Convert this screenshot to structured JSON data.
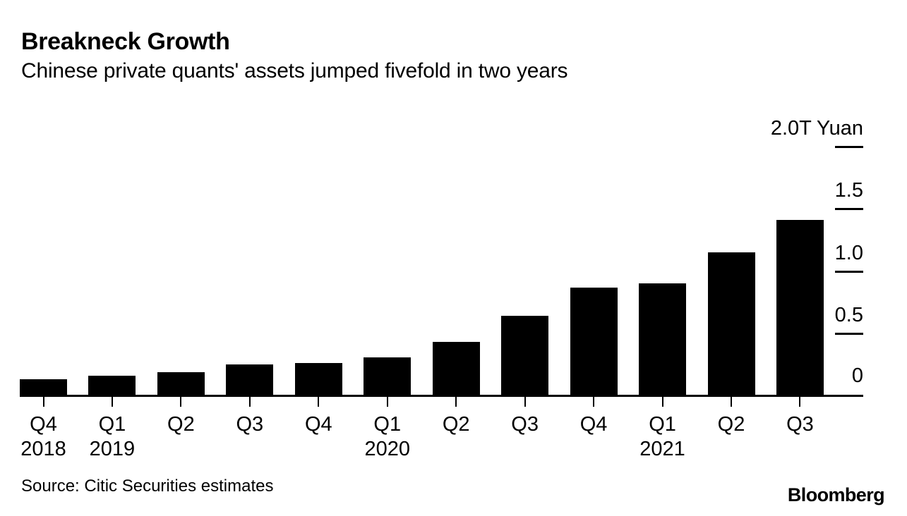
{
  "header": {
    "title": "Breakneck Growth",
    "subtitle": "Chinese private quants' assets jumped fivefold in two years"
  },
  "chart_data": {
    "type": "bar",
    "title": "Breakneck Growth",
    "subtitle": "Chinese private quants' assets jumped fivefold in two years",
    "categories": [
      "Q4 2018",
      "Q1 2019",
      "Q2 2019",
      "Q3 2019",
      "Q4 2019",
      "Q1 2020",
      "Q2 2020",
      "Q3 2020",
      "Q4 2020",
      "Q1 2021",
      "Q2 2021",
      "Q3 2021"
    ],
    "x_tick_rows": [
      {
        "quarter": "Q4",
        "year": "2018"
      },
      {
        "quarter": "Q1",
        "year": "2019"
      },
      {
        "quarter": "Q2",
        "year": ""
      },
      {
        "quarter": "Q3",
        "year": ""
      },
      {
        "quarter": "Q4",
        "year": ""
      },
      {
        "quarter": "Q1",
        "year": "2020"
      },
      {
        "quarter": "Q2",
        "year": ""
      },
      {
        "quarter": "Q3",
        "year": ""
      },
      {
        "quarter": "Q4",
        "year": ""
      },
      {
        "quarter": "Q1",
        "year": "2021"
      },
      {
        "quarter": "Q2",
        "year": ""
      },
      {
        "quarter": "Q3",
        "year": ""
      }
    ],
    "values": [
      0.14,
      0.17,
      0.2,
      0.26,
      0.27,
      0.32,
      0.44,
      0.65,
      0.88,
      0.91,
      1.16,
      1.42
    ],
    "unit_label": "2.0T Yuan",
    "ylabel": "T Yuan",
    "ylim": [
      0,
      2.0
    ],
    "y_ticks": [
      {
        "label": "2.0T Yuan",
        "value": 2.0
      },
      {
        "label": "1.5",
        "value": 1.5
      },
      {
        "label": "1.0",
        "value": 1.0
      },
      {
        "label": "0.5",
        "value": 0.5
      },
      {
        "label": "0",
        "value": 0
      }
    ],
    "bar_color": "#000000",
    "background": "#ffffff",
    "grid": "off",
    "legend": "none"
  },
  "footer": {
    "source": "Source: Citic Securities estimates",
    "brand": "Bloomberg"
  }
}
